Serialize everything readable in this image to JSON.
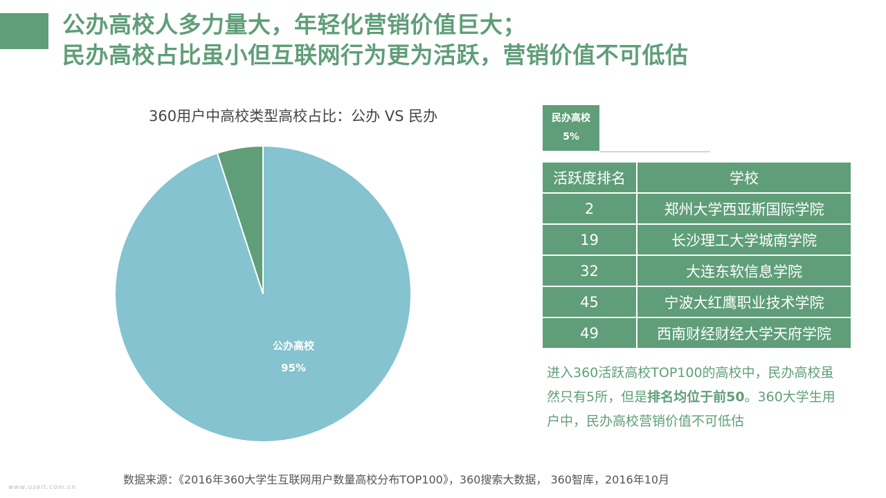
{
  "header": {
    "title_line1": "公办高校人多力量大，年轻化营销价值巨大；",
    "title_line2": "民办高校占比虽小但互联网行为更为活跃，营销价值不可低估"
  },
  "colors": {
    "green": "#5f9e78",
    "blue": "#84c3cf"
  },
  "chart_data": {
    "type": "pie",
    "title": "360用户中高校类型高校占比：公办 VS 民办",
    "slices": [
      {
        "name": "公办高校",
        "value": 95,
        "label": "95%",
        "color": "#84c3cf"
      },
      {
        "name": "民办高校",
        "value": 5,
        "label": "5%",
        "color": "#5f9e78"
      }
    ]
  },
  "table": {
    "headers": [
      "活跃度排名",
      "学校"
    ],
    "rows": [
      [
        "2",
        "郑州大学西亚斯国际学院"
      ],
      [
        "19",
        "长沙理工大学城南学院"
      ],
      [
        "32",
        "大连东软信息学院"
      ],
      [
        "45",
        "宁波大红鹰职业技术学院"
      ],
      [
        "49",
        "西南财经财经大学天府学院"
      ]
    ]
  },
  "note": {
    "part1": "进入360活跃高校TOP100的高校中，民办高校虽然只有5所，但是",
    "bold": "排名均位于前50",
    "part2": "。360大学生用户中，民办高校营销价值不可低估"
  },
  "source": "数据来源：《2016年360大学生互联网用户数量高校分布TOP100》，360搜索大数据， 360智库，2016年10月",
  "watermark": "www.useit.com.cn"
}
